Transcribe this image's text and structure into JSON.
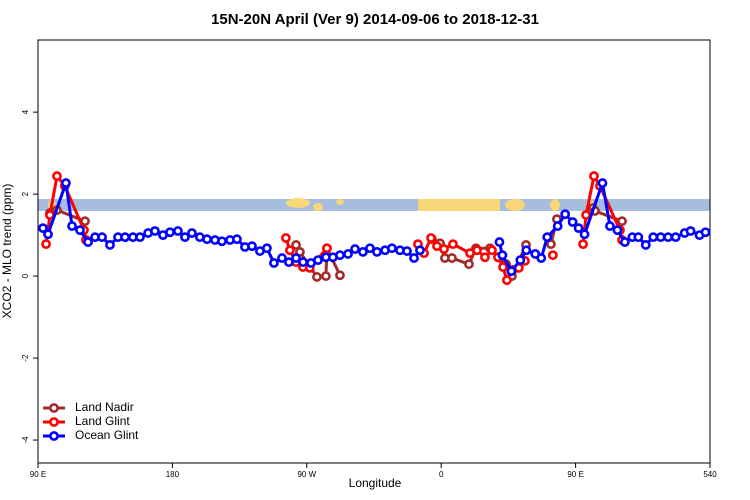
{
  "chart_data": {
    "type": "line",
    "title": "15N-20N April (Ver 9)   2014-09-06 to 2018-12-31",
    "xlabel": "Longitude",
    "ylabel": "XCO2 - MLO trend (ppm)",
    "xlim": [
      90,
      540
    ],
    "ylim": [
      -4.56,
      5.76
    ],
    "xticks": [
      {
        "value": 90,
        "label": "90 E"
      },
      180,
      {
        "value": 270,
        "label": "90 W"
      },
      {
        "value": 360,
        "label": "0"
      },
      {
        "value": 450,
        "label": "90 E"
      },
      540
    ],
    "yticks": [
      -4,
      -2,
      0,
      2,
      4
    ],
    "legend": "lower left",
    "series": [
      {
        "name": "Land Nadir",
        "color": "#a52a2a",
        "x": [
          98,
          102.7,
          121.5,
          190,
          262.8,
          265.4,
          276.8,
          282.8,
          283.5,
          292.2,
          320,
          353.8,
          359.2,
          362.5,
          367.2,
          378.6,
          383.3,
          392.7,
          403.4,
          407.4,
          416.8,
          425,
          433.5,
          437.5,
          450,
          461.6,
          463,
          481.1
        ],
        "values": [
          1.54,
          1.61,
          1.34,
          null,
          0.76,
          0.59,
          -0.02,
          0.0,
          0.68,
          0.02,
          null,
          0.9,
          0.8,
          0.44,
          0.44,
          0.29,
          0.68,
          0.68,
          0.29,
          0.0,
          0.76,
          null,
          0.78,
          1.39,
          null,
          1.66,
          1.59,
          1.34
        ]
      },
      {
        "name": "Land Glint",
        "color": "#ff0000",
        "x": [
          95.4,
          98,
          102.7,
          108,
          120.8,
          122.1,
          190,
          256,
          258.7,
          262.8,
          267.4,
          272,
          283.5,
          320,
          344.4,
          348.5,
          353.2,
          357.2,
          361.9,
          367.9,
          379.3,
          384,
          389.3,
          394,
          398,
          401.4,
          404,
          408,
          412,
          416.1,
          425,
          434.8,
          445,
          455,
          457,
          462.3,
          466.3,
          479.7,
          481.1
        ],
        "values": [
          0.78,
          1.49,
          2.44,
          2.2,
          1.12,
          0.88,
          null,
          0.93,
          0.63,
          0.34,
          0.22,
          0.2,
          0.68,
          null,
          0.78,
          0.56,
          0.93,
          0.73,
          0.66,
          0.78,
          0.56,
          0.63,
          0.46,
          0.63,
          0.46,
          0.22,
          -0.1,
          0.15,
          0.2,
          0.37,
          null,
          0.51,
          null,
          0.78,
          1.49,
          2.44,
          2.2,
          1.12,
          0.88
        ]
      },
      {
        "name": "Ocean Glint",
        "color": "#0000ff",
        "x": [
          93.3,
          96.7,
          108.7,
          112.8,
          118.1,
          123.5,
          128.2,
          132.9,
          138.2,
          143.6,
          148.3,
          153.6,
          158.3,
          163.7,
          168.3,
          173.7,
          178.4,
          183.7,
          188.4,
          193.1,
          198.4,
          203.2,
          208.5,
          213.2,
          218.6,
          223.2,
          228.6,
          233.3,
          238.6,
          243.3,
          248.0,
          253.4,
          258.0,
          262.8,
          267.5,
          272.8,
          277.5,
          282.8,
          287.5,
          292.2,
          297.6,
          302.3,
          307.6,
          312.3,
          317.0,
          322.4,
          327.0,
          332.4,
          337.1,
          341.8,
          345.8,
          370,
          399,
          401,
          407,
          413,
          417,
          423,
          427,
          431,
          438,
          443,
          448,
          452,
          456,
          468,
          473,
          478,
          483,
          488,
          492,
          497,
          502,
          507,
          512,
          517,
          523,
          527,
          533,
          537
        ],
        "values": [
          1.17,
          1.02,
          2.27,
          1.22,
          1.12,
          0.83,
          0.95,
          0.95,
          0.76,
          0.95,
          0.95,
          0.95,
          0.95,
          1.05,
          1.1,
          1.0,
          1.07,
          1.1,
          0.95,
          1.05,
          0.95,
          0.9,
          0.88,
          0.85,
          0.88,
          0.9,
          0.71,
          0.73,
          0.61,
          0.68,
          0.32,
          0.44,
          0.34,
          0.44,
          0.34,
          0.32,
          0.39,
          0.46,
          0.46,
          0.51,
          0.54,
          0.66,
          0.59,
          0.68,
          0.59,
          0.63,
          0.68,
          0.63,
          0.61,
          0.44,
          0.63,
          null,
          0.83,
          0.51,
          0.12,
          0.39,
          0.63,
          0.54,
          0.44,
          0.95,
          1.22,
          1.51,
          1.32,
          1.17,
          1.02,
          2.27,
          1.22,
          1.12,
          0.83,
          0.95,
          0.95,
          0.76,
          0.95,
          0.95,
          0.95,
          0.95,
          1.05,
          1.1,
          1.0,
          1.07
        ]
      }
    ]
  }
}
